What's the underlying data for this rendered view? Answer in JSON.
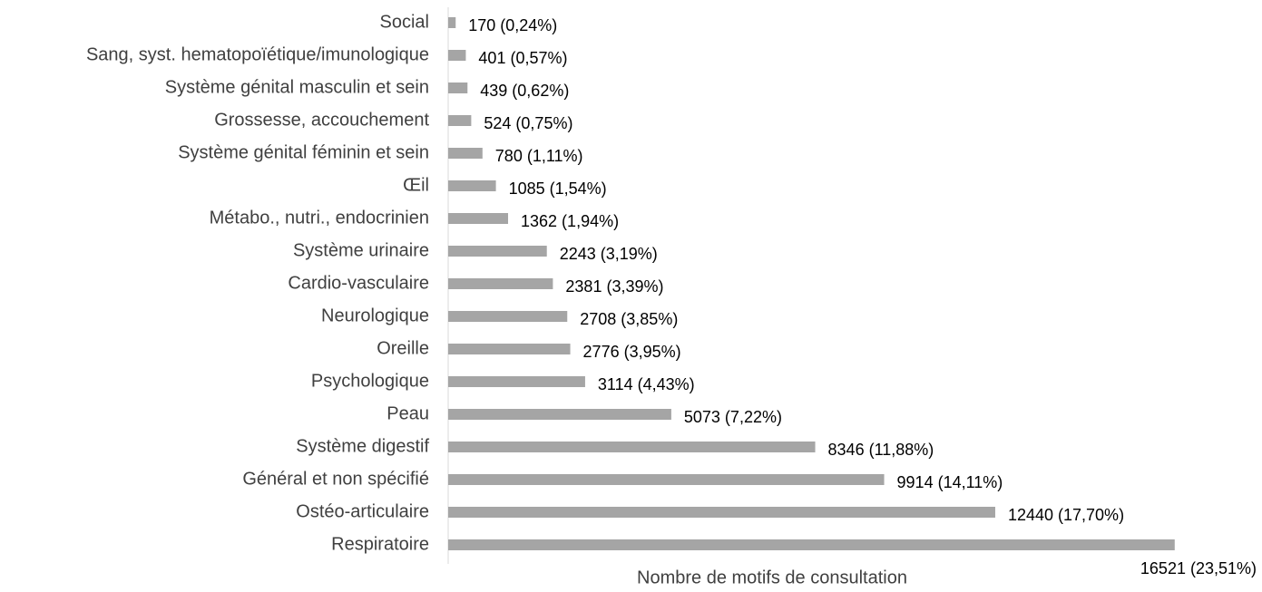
{
  "chart_data": {
    "type": "bar",
    "orientation": "horizontal",
    "x_label": "Nombre de motifs de consultation",
    "categories": [
      "Social",
      "Sang, syst. hematopoïétique/imunologique",
      "Système génital masculin et sein",
      "Grossesse, accouchement",
      "Système génital féminin et sein",
      "Œil",
      "Métabo., nutri., endocrinien",
      "Système urinaire",
      "Cardio-vasculaire",
      "Neurologique",
      "Oreille",
      "Psychologique",
      "Peau",
      "Système digestif",
      "Général et non spécifié",
      "Ostéo-articulaire",
      "Respiratoire"
    ],
    "values": [
      170,
      401,
      439,
      524,
      780,
      1085,
      1362,
      2243,
      2381,
      2708,
      2776,
      3114,
      5073,
      8346,
      9914,
      12440,
      16521
    ],
    "value_labels": [
      "170 (0,24%)",
      "401 (0,57%)",
      "439 (0,62%)",
      "524 (0,75%)",
      "780 (1,11%)",
      "1085 (1,54%)",
      "1362 (1,94%)",
      "2243 (3,19%)",
      "2381 (3,39%)",
      "2708 (3,85%)",
      "2776 (3,95%)",
      "3114 (4,43%)",
      "5073 (7,22%)",
      "8346 (11,88%)",
      "9914 (14,11%)",
      "12440 (17,70%)",
      "16521 (23,51%)"
    ],
    "color": "#a5a5a5",
    "xlim": [
      0,
      17000
    ]
  }
}
